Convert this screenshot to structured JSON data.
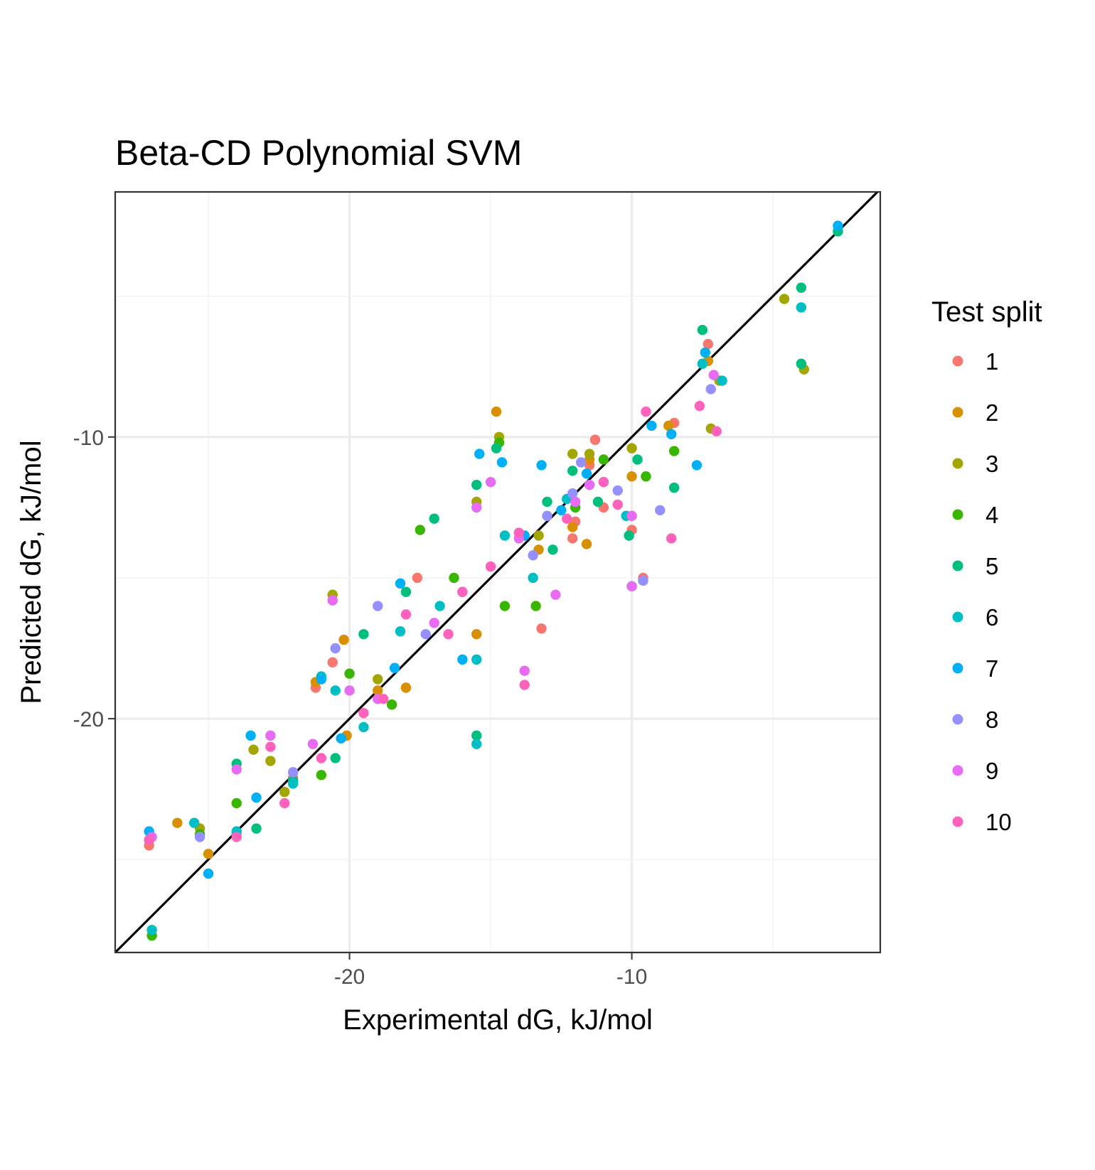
{
  "chart_data": {
    "type": "scatter",
    "title": "Beta-CD Polynomial SVM",
    "xlabel": "Experimental dG, kJ/mol",
    "ylabel": "Predicted dG, kJ/mol",
    "xlim": [
      -28.3,
      -1.2
    ],
    "ylim": [
      -28.3,
      -1.3
    ],
    "x_ticks": [
      -20,
      -10
    ],
    "y_ticks": [
      -10,
      -20
    ],
    "x_tick_labels": [
      "-20",
      "-10"
    ],
    "y_tick_labels": [
      "-10",
      "-20"
    ],
    "grid": true,
    "legend_position": "right",
    "legend_title": "Test split",
    "reference_line": {
      "slope": 1,
      "intercept": 0
    },
    "series": [
      {
        "name": "1",
        "color": "#F8766D",
        "points": [
          [
            -27.1,
            -24.5
          ],
          [
            -7.3,
            -6.7
          ],
          [
            -13.2,
            -16.8
          ],
          [
            -11.0,
            -12.5
          ],
          [
            -10.0,
            -13.3
          ],
          [
            -12.1,
            -13.6
          ],
          [
            -11.3,
            -10.1
          ],
          [
            -17.6,
            -15.0
          ],
          [
            -21.2,
            -18.9
          ],
          [
            -22.0,
            -22.1
          ],
          [
            -24.0,
            -24.1
          ],
          [
            -9.6,
            -15.0
          ],
          [
            -11.5,
            -11.0
          ],
          [
            -8.5,
            -9.5
          ],
          [
            -20.6,
            -18.0
          ],
          [
            -12.0,
            -13.0
          ]
        ]
      },
      {
        "name": "2",
        "color": "#D89000",
        "points": [
          [
            -27.1,
            -24.3
          ],
          [
            -26.1,
            -23.7
          ],
          [
            -25.0,
            -24.8
          ],
          [
            -21.2,
            -18.7
          ],
          [
            -20.2,
            -17.2
          ],
          [
            -18.0,
            -18.9
          ],
          [
            -15.5,
            -17.0
          ],
          [
            -14.8,
            -9.1
          ],
          [
            -12.1,
            -13.2
          ],
          [
            -11.6,
            -13.8
          ],
          [
            -8.7,
            -9.6
          ],
          [
            -7.3,
            -7.3
          ],
          [
            -10.0,
            -11.4
          ],
          [
            -11.5,
            -10.8
          ],
          [
            -13.3,
            -14.0
          ],
          [
            -20.1,
            -20.6
          ],
          [
            -19.0,
            -19.0
          ]
        ]
      },
      {
        "name": "3",
        "color": "#A3A500",
        "points": [
          [
            -25.3,
            -23.9
          ],
          [
            -22.8,
            -21.5
          ],
          [
            -22.3,
            -22.6
          ],
          [
            -23.4,
            -21.1
          ],
          [
            -20.6,
            -15.6
          ],
          [
            -14.7,
            -10.0
          ],
          [
            -12.1,
            -10.6
          ],
          [
            -11.5,
            -10.6
          ],
          [
            -10.0,
            -10.4
          ],
          [
            -7.2,
            -9.7
          ],
          [
            -6.9,
            -8.0
          ],
          [
            -3.9,
            -7.6
          ],
          [
            -4.6,
            -5.1
          ],
          [
            -13.3,
            -13.5
          ],
          [
            -15.5,
            -12.3
          ],
          [
            -19.0,
            -18.6
          ]
        ]
      },
      {
        "name": "4",
        "color": "#39B600",
        "points": [
          [
            -27.0,
            -27.7
          ],
          [
            -25.3,
            -24.1
          ],
          [
            -24.0,
            -23.0
          ],
          [
            -22.0,
            -22.3
          ],
          [
            -21.0,
            -22.0
          ],
          [
            -20.0,
            -18.4
          ],
          [
            -18.5,
            -19.5
          ],
          [
            -17.5,
            -13.3
          ],
          [
            -14.7,
            -10.2
          ],
          [
            -14.5,
            -16.0
          ],
          [
            -12.0,
            -12.5
          ],
          [
            -11.0,
            -10.8
          ],
          [
            -9.5,
            -11.4
          ],
          [
            -8.5,
            -10.5
          ],
          [
            -13.4,
            -16.0
          ],
          [
            -16.3,
            -15.0
          ]
        ]
      },
      {
        "name": "5",
        "color": "#00BF7D",
        "points": [
          [
            -24.0,
            -21.6
          ],
          [
            -23.3,
            -23.9
          ],
          [
            -22.0,
            -22.2
          ],
          [
            -19.5,
            -17.0
          ],
          [
            -18.0,
            -15.5
          ],
          [
            -17.0,
            -12.9
          ],
          [
            -15.5,
            -11.7
          ],
          [
            -14.8,
            -10.4
          ],
          [
            -12.1,
            -11.2
          ],
          [
            -11.2,
            -12.3
          ],
          [
            -9.8,
            -10.8
          ],
          [
            -8.5,
            -11.8
          ],
          [
            -7.5,
            -6.2
          ],
          [
            -4.0,
            -4.7
          ],
          [
            -4.0,
            -7.4
          ],
          [
            -12.8,
            -14.0
          ],
          [
            -15.5,
            -20.6
          ],
          [
            -20.5,
            -21.4
          ],
          [
            -2.7,
            -2.7
          ],
          [
            -10.1,
            -13.5
          ],
          [
            -13.0,
            -12.3
          ]
        ]
      },
      {
        "name": "6",
        "color": "#00BFC4",
        "points": [
          [
            -27.0,
            -27.5
          ],
          [
            -25.5,
            -23.7
          ],
          [
            -24.0,
            -24.0
          ],
          [
            -22.0,
            -22.3
          ],
          [
            -20.5,
            -19.0
          ],
          [
            -19.5,
            -20.3
          ],
          [
            -18.2,
            -16.9
          ],
          [
            -16.8,
            -16.0
          ],
          [
            -15.5,
            -17.9
          ],
          [
            -14.5,
            -13.5
          ],
          [
            -12.3,
            -12.2
          ],
          [
            -11.0,
            -11.6
          ],
          [
            -10.2,
            -12.8
          ],
          [
            -10.0,
            -15.3
          ],
          [
            -6.8,
            -8.0
          ],
          [
            -4.0,
            -5.4
          ],
          [
            -7.5,
            -7.4
          ],
          [
            -21.0,
            -18.5
          ],
          [
            -15.5,
            -20.9
          ],
          [
            -13.5,
            -15.0
          ]
        ]
      },
      {
        "name": "7",
        "color": "#00B0F6",
        "points": [
          [
            -27.1,
            -24.0
          ],
          [
            -25.0,
            -25.5
          ],
          [
            -23.5,
            -20.6
          ],
          [
            -23.3,
            -22.8
          ],
          [
            -21.0,
            -18.6
          ],
          [
            -20.3,
            -20.7
          ],
          [
            -18.4,
            -18.2
          ],
          [
            -18.2,
            -15.2
          ],
          [
            -15.4,
            -10.6
          ],
          [
            -14.6,
            -10.9
          ],
          [
            -13.2,
            -11.0
          ],
          [
            -11.6,
            -11.3
          ],
          [
            -9.3,
            -9.6
          ],
          [
            -8.6,
            -9.9
          ],
          [
            -7.7,
            -11.0
          ],
          [
            -7.4,
            -7.0
          ],
          [
            -2.7,
            -2.5
          ],
          [
            -13.8,
            -13.5
          ],
          [
            -12.5,
            -12.6
          ],
          [
            -16.0,
            -17.9
          ]
        ]
      },
      {
        "name": "8",
        "color": "#9590FF",
        "points": [
          [
            -25.3,
            -24.2
          ],
          [
            -22.0,
            -21.9
          ],
          [
            -20.5,
            -17.5
          ],
          [
            -19.0,
            -16.0
          ],
          [
            -17.3,
            -17.0
          ],
          [
            -15.0,
            -14.6
          ],
          [
            -13.5,
            -14.2
          ],
          [
            -12.1,
            -12.0
          ],
          [
            -11.8,
            -10.9
          ],
          [
            -10.5,
            -11.9
          ],
          [
            -9.0,
            -12.6
          ],
          [
            -7.2,
            -8.3
          ],
          [
            -9.6,
            -15.1
          ],
          [
            -13.0,
            -12.8
          ],
          [
            -16.0,
            -15.5
          ]
        ]
      },
      {
        "name": "9",
        "color": "#E76BF3",
        "points": [
          [
            -27.0,
            -24.2
          ],
          [
            -24.0,
            -21.8
          ],
          [
            -22.8,
            -20.6
          ],
          [
            -21.3,
            -20.9
          ],
          [
            -20.6,
            -15.8
          ],
          [
            -20.0,
            -19.0
          ],
          [
            -19.0,
            -19.3
          ],
          [
            -17.0,
            -16.6
          ],
          [
            -15.5,
            -12.5
          ],
          [
            -15.0,
            -11.6
          ],
          [
            -13.8,
            -18.3
          ],
          [
            -12.7,
            -15.6
          ],
          [
            -11.5,
            -11.7
          ],
          [
            -10.0,
            -12.8
          ],
          [
            -7.1,
            -7.8
          ],
          [
            -10.0,
            -15.3
          ],
          [
            -14.0,
            -13.6
          ],
          [
            -12.0,
            -12.3
          ]
        ]
      },
      {
        "name": "10",
        "color": "#FF62BC",
        "points": [
          [
            -27.1,
            -24.3
          ],
          [
            -24.0,
            -24.2
          ],
          [
            -22.8,
            -21.0
          ],
          [
            -22.3,
            -23.0
          ],
          [
            -21.0,
            -21.4
          ],
          [
            -19.5,
            -19.8
          ],
          [
            -18.0,
            -16.3
          ],
          [
            -16.5,
            -17.0
          ],
          [
            -15.0,
            -14.6
          ],
          [
            -14.0,
            -13.4
          ],
          [
            -13.8,
            -18.8
          ],
          [
            -12.3,
            -12.9
          ],
          [
            -11.0,
            -11.6
          ],
          [
            -10.5,
            -12.4
          ],
          [
            -9.5,
            -9.1
          ],
          [
            -8.6,
            -13.6
          ],
          [
            -7.0,
            -9.8
          ],
          [
            -7.6,
            -8.9
          ],
          [
            -16.0,
            -15.5
          ],
          [
            -18.8,
            -19.3
          ]
        ]
      }
    ]
  }
}
